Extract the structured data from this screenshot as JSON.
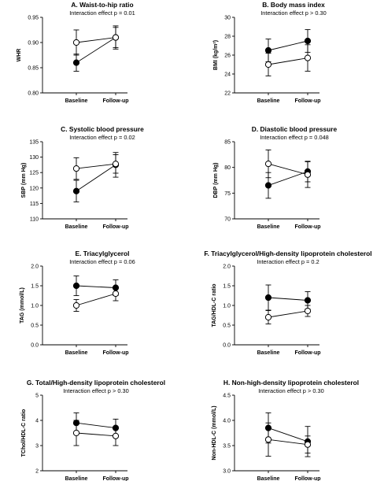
{
  "chart_data": [
    {
      "type": "line",
      "title": "A. Waist-to-hip ratio",
      "subtitle": "Interaction effect p = 0.01",
      "ylabel": "WHR",
      "categories": [
        "Baseline",
        "Follow-up"
      ],
      "ylim": [
        0.8,
        0.95
      ],
      "yticks": [
        0.8,
        0.85,
        0.9,
        0.95
      ],
      "series": [
        {
          "marker": "filled",
          "values": [
            0.86,
            0.91
          ],
          "err": [
            0.017,
            0.023
          ]
        },
        {
          "marker": "open",
          "values": [
            0.9,
            0.91
          ],
          "err": [
            0.025,
            0.02
          ]
        }
      ]
    },
    {
      "type": "line",
      "title": "B. Body mass index",
      "subtitle": "Interaction effect p > 0.30",
      "ylabel": "BMI (kg/m²)",
      "categories": [
        "Baseline",
        "Follow-up"
      ],
      "ylim": [
        22,
        30
      ],
      "yticks": [
        22,
        24,
        26,
        28,
        30
      ],
      "series": [
        {
          "marker": "filled",
          "values": [
            26.5,
            27.5
          ],
          "err": [
            1.2,
            1.2
          ]
        },
        {
          "marker": "open",
          "values": [
            25.0,
            25.7
          ],
          "err": [
            1.2,
            1.4
          ]
        }
      ]
    },
    {
      "type": "line",
      "title": "C. Systolic blood pressure",
      "subtitle": "Interaction effect p = 0.02",
      "ylabel": "SBP (mm Hg)",
      "categories": [
        "Baseline",
        "Follow-up"
      ],
      "ylim": [
        110,
        135
      ],
      "yticks": [
        110,
        115,
        120,
        125,
        130,
        135
      ],
      "series": [
        {
          "marker": "filled",
          "values": [
            119.0,
            127.5
          ],
          "err": [
            3.5,
            4.0
          ]
        },
        {
          "marker": "open",
          "values": [
            126.3,
            127.8
          ],
          "err": [
            3.5,
            3.0
          ]
        }
      ]
    },
    {
      "type": "line",
      "title": "D. Diastolic blood pressure",
      "subtitle": "Interaction effect p = 0.048",
      "ylabel": "DBP (mm Hg)",
      "categories": [
        "Baseline",
        "Follow-up"
      ],
      "ylim": [
        70,
        85
      ],
      "yticks": [
        70,
        75,
        80,
        85
      ],
      "series": [
        {
          "marker": "filled",
          "values": [
            76.5,
            79.2
          ],
          "err": [
            2.5,
            2.0
          ]
        },
        {
          "marker": "open",
          "values": [
            80.7,
            78.6
          ],
          "err": [
            2.7,
            2.5
          ]
        }
      ]
    },
    {
      "type": "line",
      "title": "E. Triacylglycerol",
      "subtitle": "Interaction effect p = 0.06",
      "ylabel": "TAG (mmol/L)",
      "categories": [
        "Baseline",
        "Follow-up"
      ],
      "ylim": [
        0.0,
        2.0
      ],
      "yticks": [
        0.0,
        0.5,
        1.0,
        1.5,
        2.0
      ],
      "series": [
        {
          "marker": "filled",
          "values": [
            1.5,
            1.45
          ],
          "err": [
            0.25,
            0.2
          ]
        },
        {
          "marker": "open",
          "values": [
            1.0,
            1.3
          ],
          "err": [
            0.15,
            0.18
          ]
        }
      ]
    },
    {
      "type": "line",
      "title": "F. Triacylglycerol/High-density lipoprotein cholesterol",
      "subtitle": "Interaction effect p = 0.2",
      "ylabel": "TAG/HDL-C ratio",
      "categories": [
        "Baseline",
        "Follow-up"
      ],
      "ylim": [
        0.0,
        2.0
      ],
      "yticks": [
        0.0,
        0.5,
        1.0,
        1.5,
        2.0
      ],
      "series": [
        {
          "marker": "filled",
          "values": [
            1.2,
            1.13
          ],
          "err": [
            0.32,
            0.22
          ]
        },
        {
          "marker": "open",
          "values": [
            0.7,
            0.86
          ],
          "err": [
            0.17,
            0.14
          ]
        }
      ]
    },
    {
      "type": "line",
      "title": "G. Total/High-density lipoprotein cholesterol",
      "subtitle": "Interaction effect p > 0.30",
      "ylabel": "TChol/HDL-C ratio",
      "categories": [
        "Baseline",
        "Follow-up"
      ],
      "ylim": [
        2,
        5
      ],
      "yticks": [
        2,
        3,
        4,
        5
      ],
      "series": [
        {
          "marker": "filled",
          "values": [
            3.9,
            3.7
          ],
          "err": [
            0.4,
            0.35
          ]
        },
        {
          "marker": "open",
          "values": [
            3.5,
            3.38
          ],
          "err": [
            0.5,
            0.38
          ]
        }
      ]
    },
    {
      "type": "line",
      "title": "H. Non-high-density lipoprotein cholesterol",
      "subtitle": "Interaction effect p > 0.30",
      "ylabel": "Non-HDL-C (mmol/L)",
      "categories": [
        "Baseline",
        "Follow-up"
      ],
      "ylim": [
        3.0,
        4.5
      ],
      "yticks": [
        3.0,
        3.5,
        4.0,
        4.5
      ],
      "series": [
        {
          "marker": "filled",
          "values": [
            3.85,
            3.58
          ],
          "err": [
            0.3,
            0.3
          ]
        },
        {
          "marker": "open",
          "values": [
            3.62,
            3.52
          ],
          "err": [
            0.33,
            0.17
          ]
        }
      ]
    }
  ]
}
